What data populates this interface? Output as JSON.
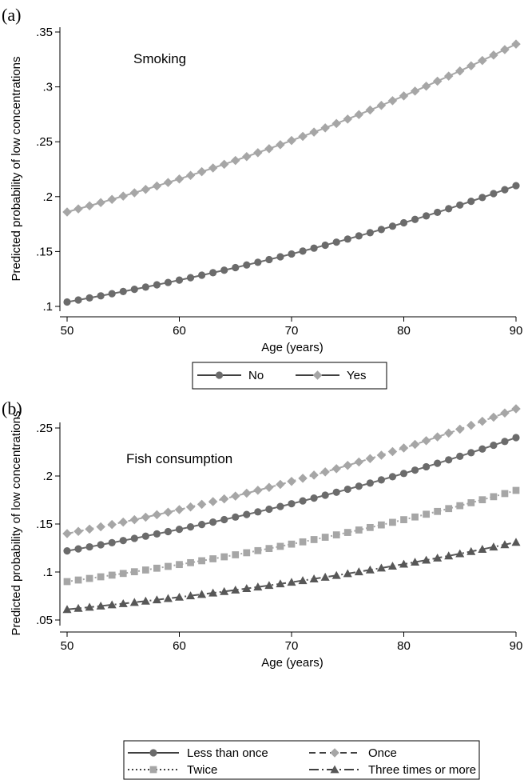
{
  "chart_data": [
    {
      "panel": "(a)",
      "type": "line",
      "annotation": "Smoking",
      "xlabel": "Age (years)",
      "ylabel": "Predicted probability of low concentrations",
      "xlim": [
        50,
        90
      ],
      "ylim": [
        0.1,
        0.35
      ],
      "xticks": [
        50,
        60,
        70,
        80,
        90
      ],
      "xtick_labels": [
        "50",
        "60",
        "70",
        "80",
        "90"
      ],
      "yticks": [
        0.1,
        0.15,
        0.2,
        0.25,
        0.3,
        0.35
      ],
      "ytick_labels": [
        ".1",
        ".15",
        ".2",
        ".25",
        ".3",
        ".35"
      ],
      "grid": false,
      "legend_position": "bottom",
      "x_step": 1,
      "series": [
        {
          "name": "No",
          "marker": "circle",
          "color": "#6b6b6b",
          "line": "solid",
          "start": 0.104,
          "end": 0.21
        },
        {
          "name": "Yes",
          "marker": "diamond",
          "color": "#a6a6a6",
          "line": "solid",
          "start": 0.186,
          "end": 0.339
        }
      ]
    },
    {
      "panel": "(b)",
      "type": "line",
      "annotation": "Fish consumption",
      "xlabel": "Age (years)",
      "ylabel": "Predicted probability of low concentrations",
      "xlim": [
        50,
        90
      ],
      "ylim": [
        0.05,
        0.25
      ],
      "xticks": [
        50,
        60,
        70,
        80,
        90
      ],
      "xtick_labels": [
        "50",
        "60",
        "70",
        "80",
        "90"
      ],
      "yticks": [
        0.05,
        0.1,
        0.15,
        0.2,
        0.25
      ],
      "ytick_labels": [
        ".05",
        ".1",
        ".15",
        ".2",
        ".25"
      ],
      "grid": false,
      "legend_position": "bottom",
      "x_step": 1,
      "series": [
        {
          "name": "Less than once",
          "marker": "circle",
          "color": "#6b6b6b",
          "line": "solid",
          "start": 0.122,
          "end": 0.24
        },
        {
          "name": "Once",
          "marker": "diamond",
          "color": "#a6a6a6",
          "line": "dash",
          "start": 0.14,
          "end": 0.27
        },
        {
          "name": "Twice",
          "marker": "square",
          "color": "#a6a6a6",
          "line": "dot",
          "start": 0.09,
          "end": 0.185
        },
        {
          "name": "Three times or more",
          "marker": "triangle",
          "color": "#575757",
          "line": "longdash-dot",
          "start": 0.061,
          "end": 0.131
        }
      ]
    }
  ]
}
